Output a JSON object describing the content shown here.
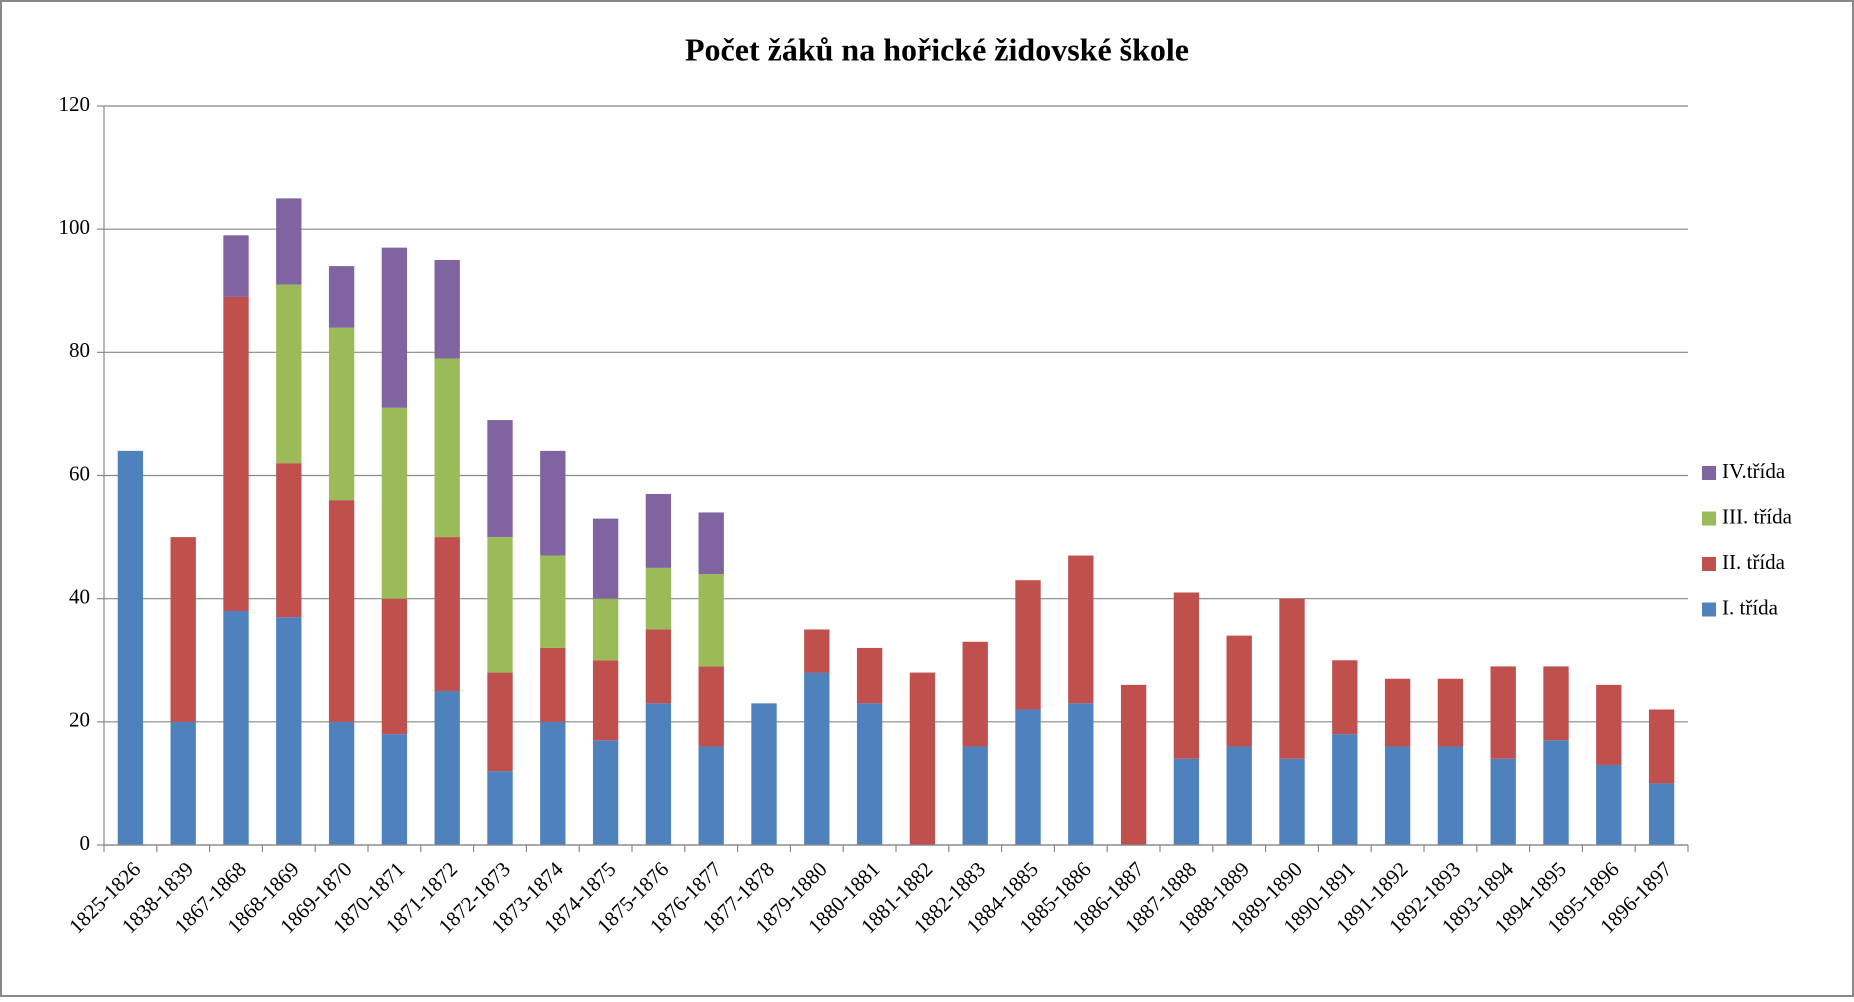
{
  "chart_data": {
    "type": "stacked_bar",
    "title": "Počet žáků na hořické židovské škole",
    "categories": [
      "1825-1826",
      "1838-1839",
      "1867-1868",
      "1868-1869",
      "1869-1870",
      "1870-1871",
      "1871-1872",
      "1872-1873",
      "1873-1874",
      "1874-1875",
      "1875-1876",
      "1876-1877",
      "1877-1878",
      "1879-1880",
      "1880-1881",
      "1881-1882",
      "1882-1883",
      "1884-1885",
      "1885-1886",
      "1886-1887",
      "1887-1888",
      "1888-1889",
      "1889-1890",
      "1890-1891",
      "1891-1892",
      "1892-1893",
      "1893-1894",
      "1894-1895",
      "1895-1896",
      "1896-1897"
    ],
    "series": [
      {
        "name": "I. třída",
        "color": "#4f81bd",
        "values": [
          64,
          20,
          38,
          37,
          20,
          18,
          25,
          12,
          20,
          17,
          23,
          16,
          23,
          28,
          23,
          null,
          16,
          22,
          23,
          null,
          14,
          16,
          14,
          18,
          16,
          16,
          14,
          17,
          13,
          10
        ]
      },
      {
        "name": "II. třída",
        "color": "#c0504d",
        "values": [
          null,
          30,
          51,
          25,
          36,
          22,
          25,
          16,
          12,
          13,
          12,
          13,
          null,
          7,
          9,
          28,
          17,
          21,
          24,
          26,
          27,
          18,
          26,
          12,
          11,
          11,
          15,
          12,
          13,
          12
        ]
      },
      {
        "name": "III. třída",
        "color": "#9bbb59",
        "values": [
          null,
          null,
          null,
          29,
          28,
          31,
          29,
          22,
          15,
          10,
          10,
          15,
          null,
          null,
          null,
          null,
          null,
          null,
          null,
          null,
          null,
          null,
          null,
          null,
          null,
          null,
          null,
          null,
          null,
          null
        ]
      },
      {
        "name": "IV.třída",
        "color": "#8064a2",
        "values": [
          null,
          null,
          10,
          14,
          10,
          26,
          16,
          19,
          17,
          13,
          12,
          10,
          null,
          null,
          null,
          null,
          null,
          null,
          null,
          null,
          null,
          null,
          null,
          null,
          null,
          null,
          null,
          null,
          null,
          null
        ]
      }
    ],
    "ylim": [
      0,
      120
    ],
    "yticks": [
      0,
      20,
      40,
      60,
      80,
      100,
      120
    ],
    "grid": true,
    "legend": "right"
  }
}
